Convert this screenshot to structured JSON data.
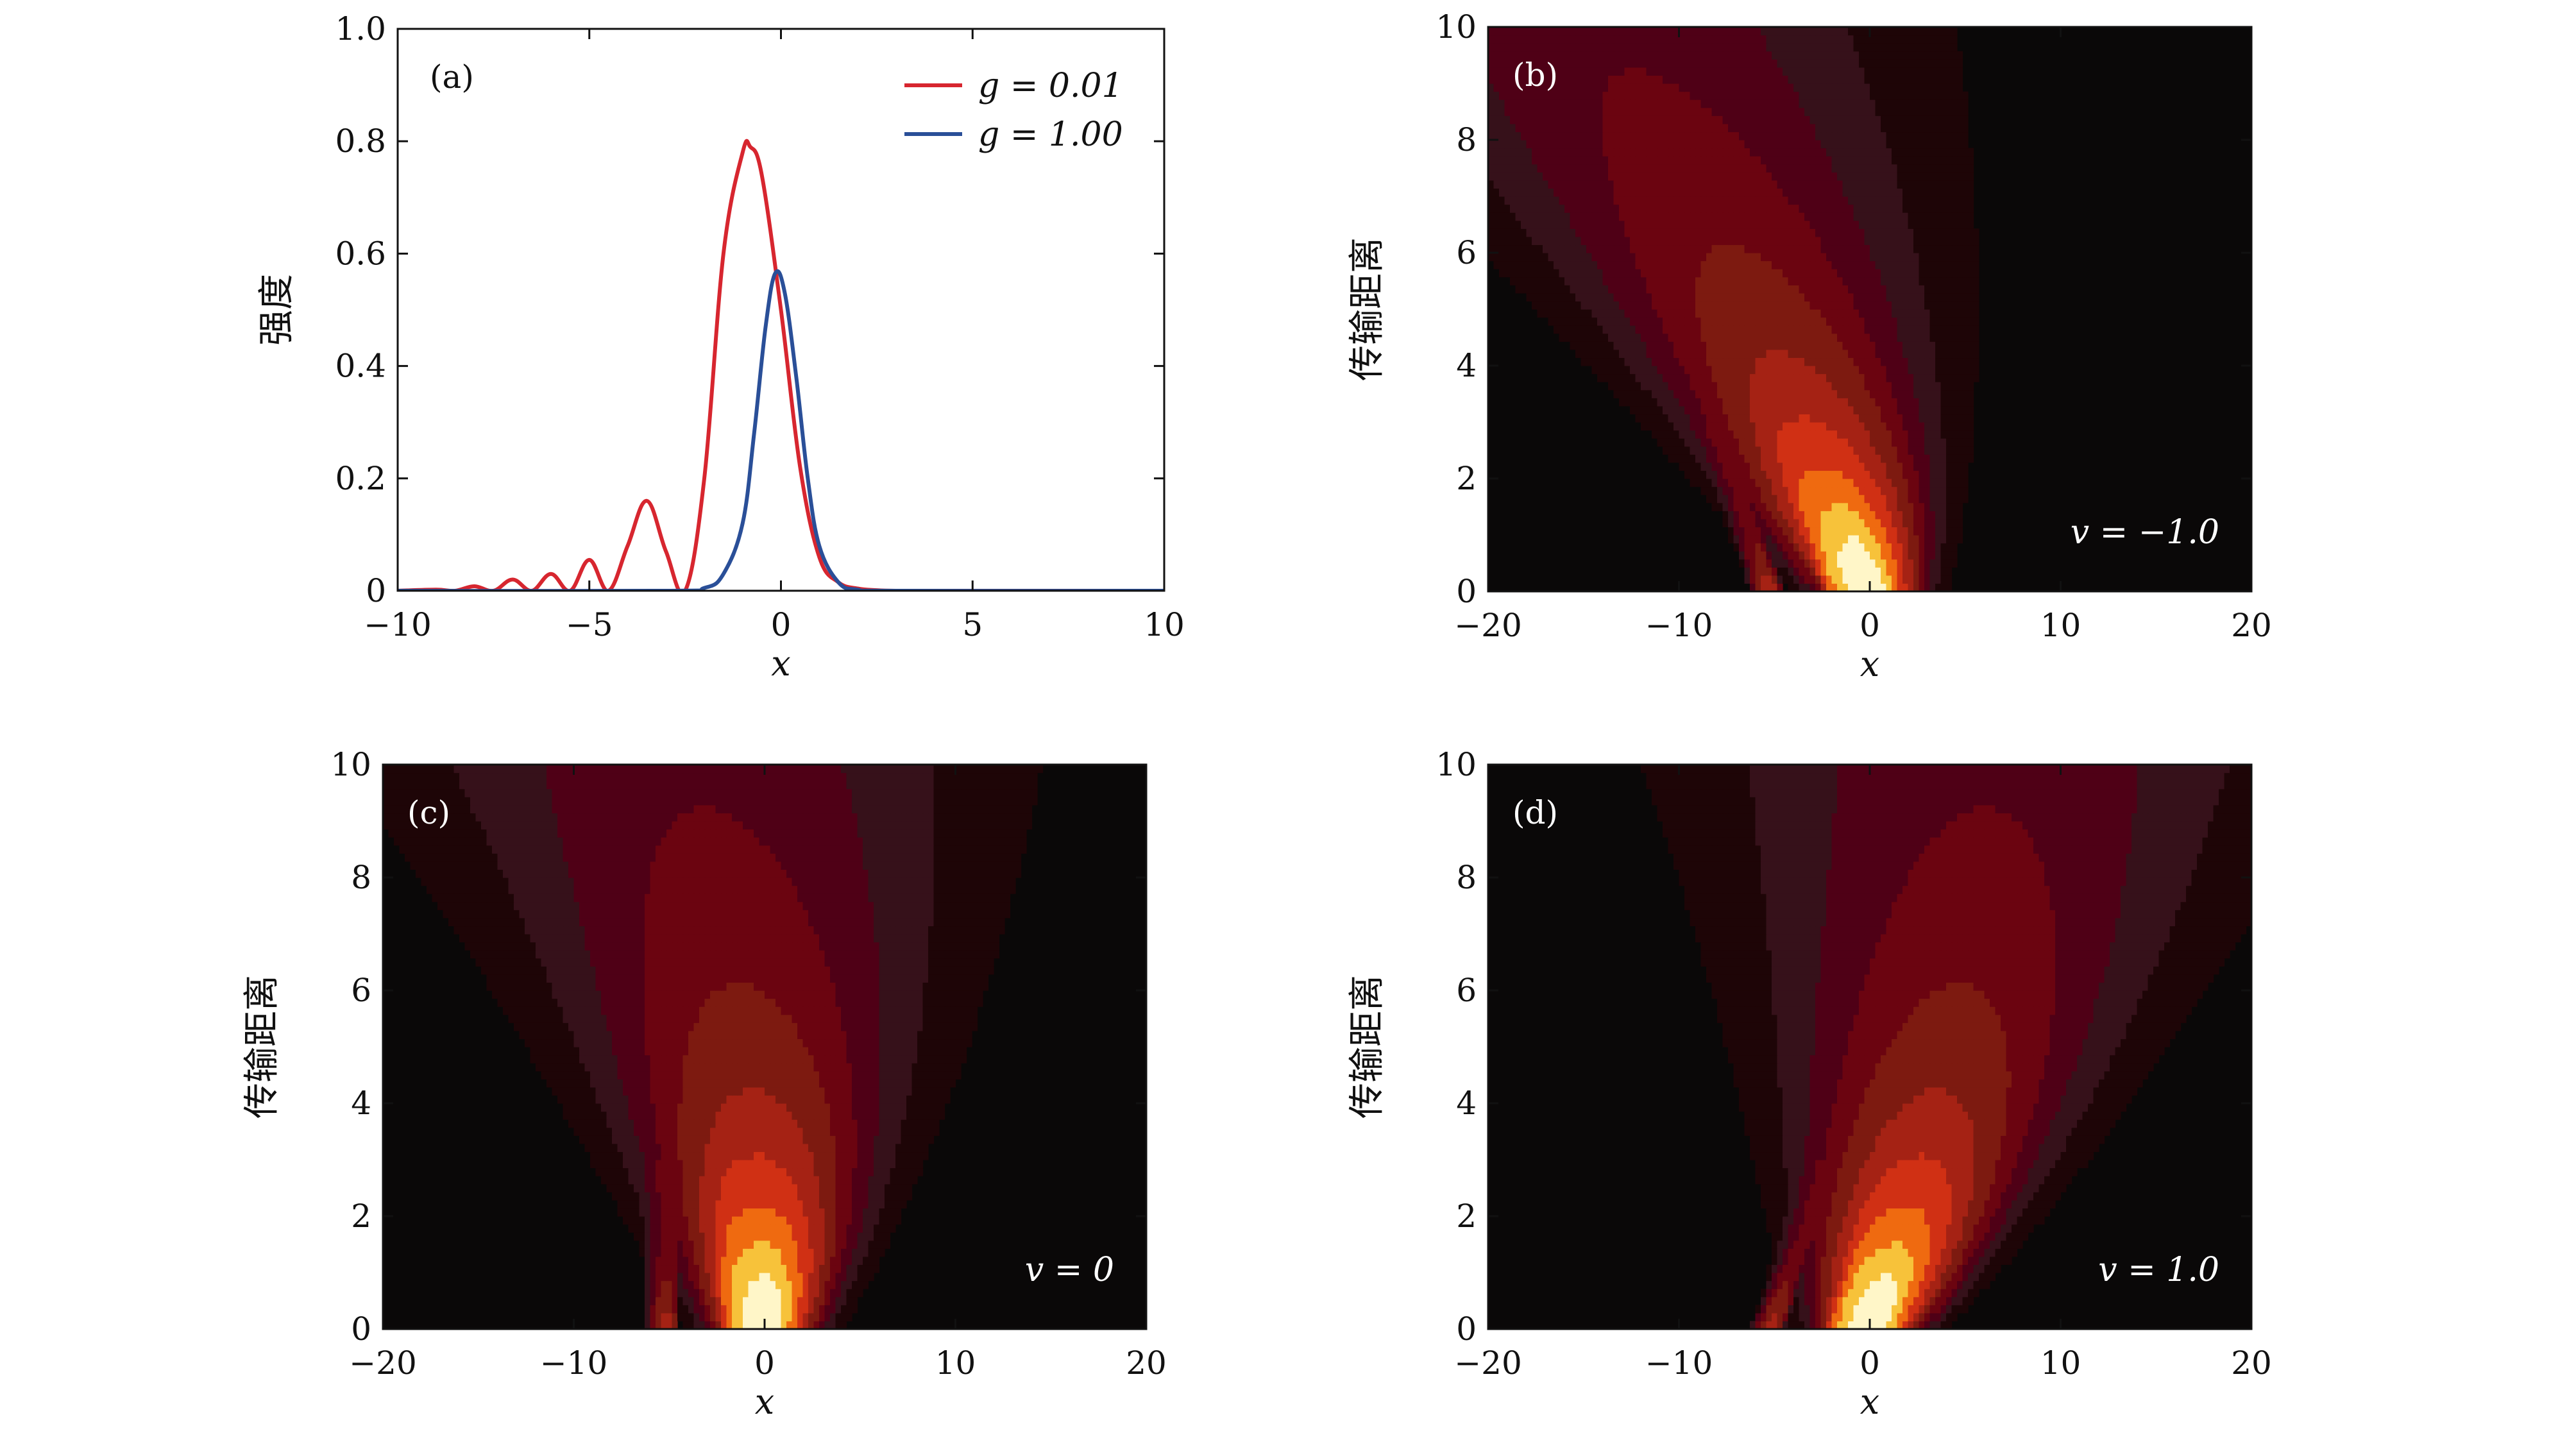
{
  "chart_data": [
    {
      "panel": "a",
      "type": "line",
      "panel_label": "(a)",
      "xlabel": "x",
      "ylabel": "强度",
      "xlim": [
        -10,
        10
      ],
      "ylim": [
        0,
        1.0
      ],
      "xticks": [
        -10,
        -5,
        0,
        5,
        10
      ],
      "xtick_labels": [
        "−10",
        "−5",
        "0",
        "5",
        "10"
      ],
      "yticks": [
        0,
        0.2,
        0.4,
        0.6,
        0.8,
        1.0
      ],
      "ytick_labels": [
        "0",
        "0.2",
        "0.4",
        "0.6",
        "0.8",
        "1.0"
      ],
      "legend_position": "top-right",
      "series": [
        {
          "name": "g = 0.01",
          "color": "#d7262f",
          "x": [
            -10,
            -9,
            -8.5,
            -8.0,
            -7.5,
            -7.0,
            -6.5,
            -6.0,
            -5.5,
            -5.0,
            -4.5,
            -4.0,
            -3.5,
            -3.0,
            -2.5,
            -2.0,
            -1.5,
            -1.0,
            -0.8,
            -0.5,
            0,
            0.5,
            1.0,
            1.5,
            2.0,
            2.5,
            3.0,
            4,
            6,
            8,
            10
          ],
          "values": [
            0,
            0.002,
            0.0,
            0.008,
            0.0,
            0.02,
            0.0,
            0.03,
            0.0,
            0.055,
            0.0,
            0.08,
            0.16,
            0.07,
            0.0,
            0.2,
            0.6,
            0.78,
            0.79,
            0.74,
            0.5,
            0.22,
            0.06,
            0.015,
            0.004,
            0.001,
            0,
            0,
            0,
            0,
            0
          ]
        },
        {
          "name": "g = 1.00",
          "color": "#2a4f98",
          "x": [
            -10,
            -3,
            -2,
            -1.5,
            -1.0,
            -0.7,
            -0.4,
            -0.15,
            0.1,
            0.4,
            0.7,
            1.0,
            1.5,
            2.0,
            3,
            10
          ],
          "values": [
            0,
            0,
            0.005,
            0.03,
            0.12,
            0.28,
            0.47,
            0.565,
            0.53,
            0.38,
            0.2,
            0.08,
            0.015,
            0.002,
            0,
            0
          ]
        }
      ]
    },
    {
      "panel": "b",
      "type": "heatmap",
      "panel_label": "(b)",
      "annotation": "v = −1.0",
      "v": -1.0,
      "xlabel": "x",
      "ylabel": "传输距离",
      "xlim": [
        -20,
        20
      ],
      "ylim": [
        0,
        10
      ],
      "xticks": [
        -20,
        -10,
        0,
        10,
        20
      ],
      "xtick_labels": [
        "−20",
        "−10",
        "0",
        "10",
        "20"
      ],
      "yticks": [
        0,
        2,
        4,
        6,
        8,
        10
      ],
      "ytick_labels": [
        "0",
        "2",
        "4",
        "6",
        "8",
        "10"
      ]
    },
    {
      "panel": "c",
      "type": "heatmap",
      "panel_label": "(c)",
      "annotation": "v = 0",
      "v": 0,
      "xlabel": "x",
      "ylabel": "传输距离",
      "xlim": [
        -20,
        20
      ],
      "ylim": [
        0,
        10
      ],
      "xticks": [
        -20,
        -10,
        0,
        10,
        20
      ],
      "xtick_labels": [
        "−20",
        "−10",
        "0",
        "10",
        "20"
      ],
      "yticks": [
        0,
        2,
        4,
        6,
        8,
        10
      ],
      "ytick_labels": [
        "0",
        "2",
        "4",
        "6",
        "8",
        "10"
      ]
    },
    {
      "panel": "d",
      "type": "heatmap",
      "panel_label": "(d)",
      "annotation": "v = 1.0",
      "v": 1.0,
      "xlabel": "x",
      "ylabel": "传输距离",
      "xlim": [
        -20,
        20
      ],
      "ylim": [
        0,
        10
      ],
      "xticks": [
        -20,
        -10,
        0,
        10,
        20
      ],
      "xtick_labels": [
        "−20",
        "−10",
        "0",
        "10",
        "20"
      ],
      "yticks": [
        0,
        2,
        4,
        6,
        8,
        10
      ],
      "ytick_labels": [
        "0",
        "2",
        "4",
        "6",
        "8",
        "10"
      ]
    }
  ],
  "heatmap_colors": {
    "background": "#0a0808",
    "levels": [
      "#1e0507",
      "#36111a",
      "#4f0016",
      "#6b0410",
      "#7d1a10",
      "#a52214",
      "#d03014",
      "#ef6a10",
      "#f7c23a",
      "#fff6c8"
    ]
  }
}
